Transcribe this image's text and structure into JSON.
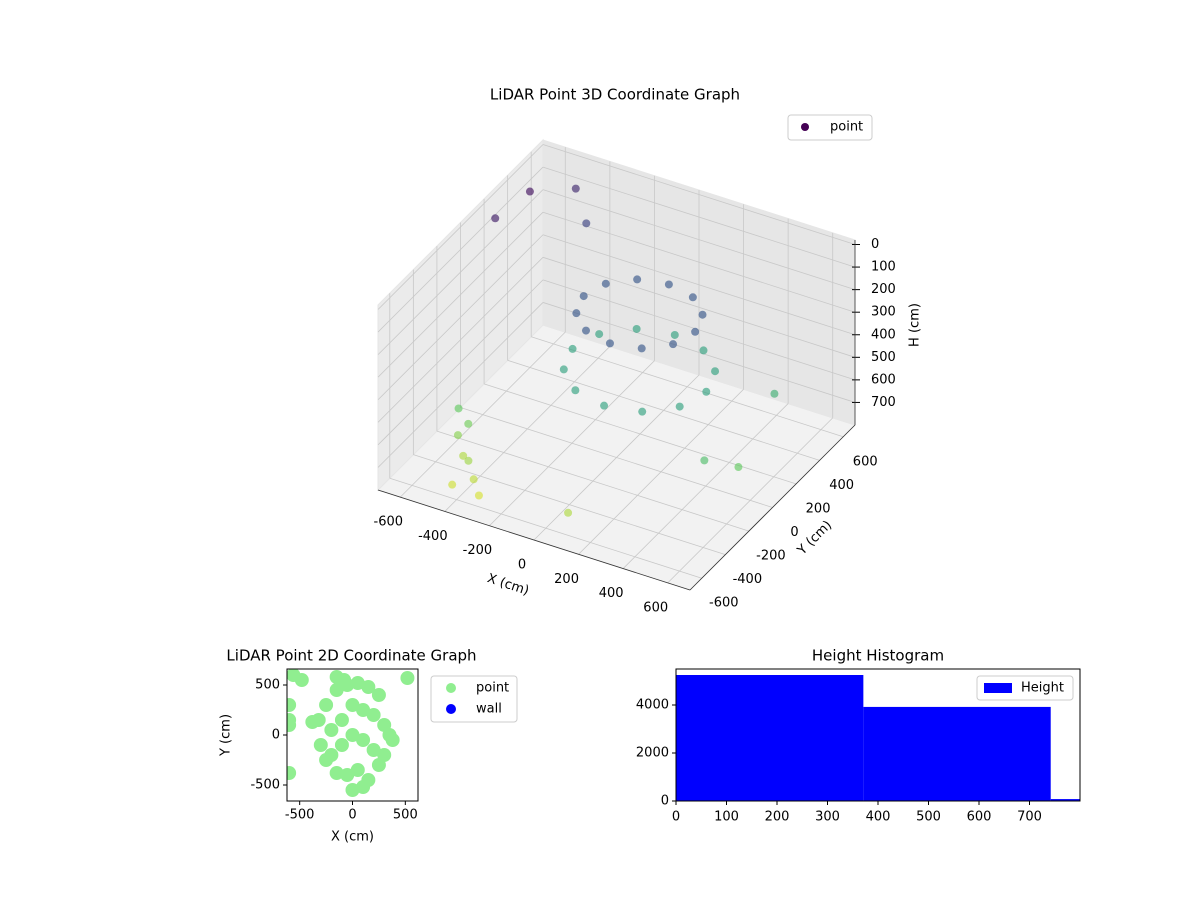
{
  "chart_data": [
    {
      "type": "scatter3d",
      "title": "LiDAR Point 3D Coordinate Graph",
      "xlabel": "X (cm)",
      "ylabel": "Y (cm)",
      "zlabel": "H (cm)",
      "xlim": [
        -700,
        700
      ],
      "ylim": [
        -700,
        700
      ],
      "zlim": [
        -20,
        800
      ],
      "z_inverted": true,
      "xticks": [
        -600,
        -400,
        -200,
        0,
        200,
        400,
        600
      ],
      "yticks": [
        -600,
        -400,
        -200,
        0,
        200,
        400,
        600
      ],
      "zticks": [
        0,
        100,
        200,
        300,
        400,
        500,
        600,
        700
      ],
      "grid": true,
      "colormap": "viridis",
      "legend": "upper right",
      "series": [
        {
          "name": "point",
          "color": "#440154",
          "x": [
            300,
            267,
            175,
            50,
            -75,
            -167,
            -200,
            -167,
            -75,
            50,
            175,
            267,
            350,
            310,
            200,
            50,
            -100,
            -210,
            -250,
            -210,
            -100,
            50,
            200,
            310,
            -500,
            -450,
            -400,
            -350,
            -300,
            -550,
            -480,
            -420,
            -650,
            -600,
            -500,
            -400,
            500,
            600,
            550,
            100
          ],
          "y": [
            100,
            225,
            317,
            350,
            317,
            225,
            100,
            -25,
            -117,
            -150,
            -117,
            -25,
            100,
            250,
            360,
            400,
            360,
            250,
            100,
            -50,
            -160,
            -200,
            -160,
            -50,
            -400,
            -450,
            -500,
            -550,
            -600,
            -300,
            -350,
            -600,
            200,
            400,
            600,
            500,
            -200,
            -100,
            300,
            -600
          ],
          "z": [
            200,
            200,
            200,
            200,
            200,
            200,
            200,
            200,
            200,
            200,
            200,
            200,
            450,
            450,
            450,
            450,
            450,
            450,
            450,
            450,
            450,
            450,
            450,
            450,
            650,
            700,
            680,
            720,
            750,
            600,
            620,
            740,
            50,
            20,
            80,
            150,
            550,
            600,
            500,
            700
          ]
        }
      ]
    },
    {
      "type": "scatter",
      "title": "LiDAR Point 2D Coordinate Graph",
      "xlabel": "X (cm)",
      "ylabel": "Y (cm)",
      "xlim": [
        -620,
        620
      ],
      "ylim": [
        -660,
        660
      ],
      "xticks": [
        -500,
        0,
        500
      ],
      "yticks": [
        -500,
        0,
        500
      ],
      "legend": "outside right",
      "series": [
        {
          "name": "point",
          "color": "#90ee90",
          "x": [
            -50,
            50,
            150,
            250,
            -150,
            -250,
            0,
            100,
            200,
            300,
            -100,
            -200,
            0,
            100,
            -100,
            200,
            -200,
            300,
            350,
            -300,
            50,
            -50,
            150,
            -150,
            250,
            -250,
            0,
            380,
            -320,
            100,
            -380,
            -480,
            -560,
            -600,
            -600,
            -600,
            -600,
            520,
            -150,
            -80
          ],
          "values": [
            500,
            520,
            480,
            400,
            450,
            300,
            300,
            250,
            200,
            100,
            150,
            50,
            0,
            -50,
            -100,
            -150,
            -200,
            -200,
            0,
            -100,
            -350,
            -400,
            -450,
            -380,
            -300,
            -250,
            -550,
            -50,
            150,
            -520,
            130,
            550,
            600,
            300,
            150,
            100,
            -380,
            570,
            580,
            550
          ]
        },
        {
          "name": "wall",
          "color": "#0000ff",
          "x": [],
          "values": []
        }
      ]
    },
    {
      "type": "histogram",
      "title": "Height Histogram",
      "bins": [
        0,
        371,
        742,
        1113
      ],
      "xlim": [
        0,
        800
      ],
      "ylim": [
        0,
        5500
      ],
      "xticks": [
        0,
        100,
        200,
        300,
        400,
        500,
        600,
        700
      ],
      "yticks": [
        0,
        2000,
        4000
      ],
      "legend": "upper right",
      "series": [
        {
          "name": "Height",
          "color": "#0000ff",
          "values": [
            5250,
            3920,
            80
          ]
        }
      ]
    }
  ]
}
